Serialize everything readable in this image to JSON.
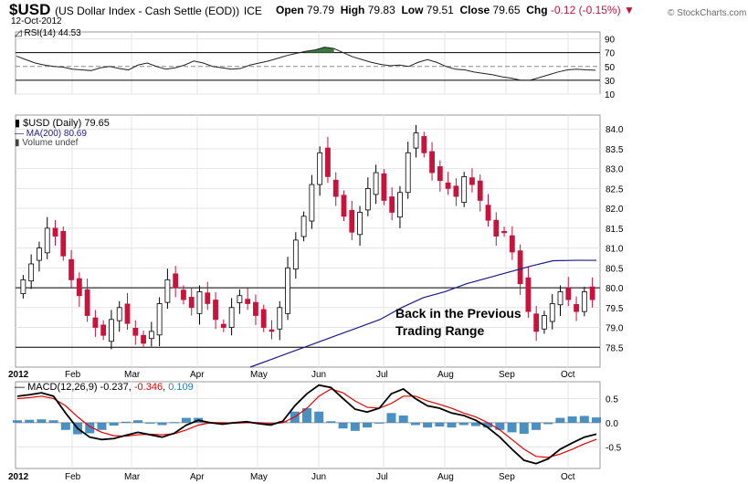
{
  "header": {
    "symbol": "$USD",
    "description": "(US Dollar Index - Cash Settle (EOD))",
    "exchange": "ICE",
    "date": "12-Oct-2012",
    "open_label": "Open",
    "open": "79.79",
    "high_label": "High",
    "high": "79.83",
    "low_label": "Low",
    "low": "79.51",
    "close_label": "Close",
    "close": "79.65",
    "chg_label": "Chg",
    "chg": "-0.12 (-0.15%)",
    "brand": "© StockCharts.com"
  },
  "colors": {
    "bull": "#000000",
    "bear": "#c8143c",
    "ma": "#1a1a8c",
    "rsi_over": "#3c783c",
    "rsi_under": "#9a4b50",
    "macd_line": "#000000",
    "signal_line": "#e60000",
    "histogram": "#2c7cb8",
    "grid": "#e4e4e4"
  },
  "chart_data": [
    {
      "type": "line",
      "panel": "rsi",
      "legend": "RSI(14) 44.53",
      "y_ticks": [
        10,
        30,
        50,
        70,
        90
      ],
      "ylim": [
        10,
        100
      ],
      "reference_lines": [
        30,
        70
      ],
      "series": [
        {
          "name": "RSI(14)",
          "values": [
            65,
            60,
            55,
            52,
            50,
            49,
            46,
            45,
            44,
            48,
            50,
            47,
            45,
            52,
            55,
            50,
            46,
            48,
            52,
            58,
            55,
            50,
            48,
            46,
            47,
            52,
            55,
            58,
            62,
            66,
            69,
            72,
            74,
            78,
            76,
            70,
            64,
            60,
            56,
            53,
            51,
            52,
            50,
            56,
            60,
            56,
            50,
            46,
            45,
            42,
            40,
            38,
            35,
            33,
            30,
            30,
            34,
            38,
            42,
            45,
            46,
            45,
            44.53
          ]
        }
      ]
    },
    {
      "type": "candlestick",
      "panel": "price",
      "legend": [
        "$USD (Daily) 79.65",
        "MA(200) 80.69",
        "Volume undef"
      ],
      "y_ticks": [
        78.5,
        79.0,
        79.5,
        80.0,
        80.5,
        81.0,
        81.5,
        82.0,
        82.5,
        83.0,
        83.5,
        84.0
      ],
      "ylim": [
        78.0,
        84.35
      ],
      "x_tick_labels": [
        "2012",
        "Feb",
        "Mar",
        "Apr",
        "May",
        "Jun",
        "Jul",
        "Aug",
        "Sep",
        "Oct"
      ],
      "horizontal_lines": [
        80.0,
        78.5
      ],
      "annotation": [
        "Back in the Previous",
        "Trading Range"
      ],
      "close": [
        80.2,
        80.6,
        81.0,
        81.5,
        81.3,
        80.8,
        80.2,
        79.8,
        79.3,
        79.0,
        78.8,
        79.2,
        79.5,
        79.1,
        78.8,
        78.6,
        78.9,
        79.6,
        80.2,
        80.0,
        79.7,
        79.5,
        79.9,
        79.6,
        79.2,
        79.0,
        79.5,
        79.8,
        79.6,
        79.3,
        79.0,
        78.9,
        79.5,
        80.5,
        81.2,
        81.8,
        82.6,
        83.4,
        82.8,
        82.3,
        81.8,
        81.4,
        81.9,
        82.5,
        82.9,
        82.2,
        81.9,
        82.4,
        83.4,
        83.9,
        83.4,
        82.9,
        82.7,
        82.5,
        82.3,
        82.8,
        82.6,
        82.2,
        81.7,
        81.3,
        81.4,
        80.9,
        80.1,
        79.4,
        78.9,
        79.3,
        79.6,
        79.9,
        79.7,
        79.4,
        79.9,
        79.7
      ],
      "series": [
        {
          "name": "MA(200)",
          "values": [
            78.0,
            78.2,
            78.4,
            78.6,
            78.8,
            79.0,
            79.2,
            79.5,
            79.75,
            79.9,
            80.1,
            80.25,
            80.4,
            80.55,
            80.68,
            80.69,
            80.69
          ]
        }
      ]
    },
    {
      "type": "line",
      "panel": "macd",
      "legend": {
        "name": "MACD(12,26,9)",
        "macd": "-0.237",
        "signal": "-0.346",
        "histogram": "0.109"
      },
      "y_ticks": [
        -0.5,
        0.0,
        0.5
      ],
      "ylim": [
        -0.95,
        0.85
      ],
      "x_tick_labels": [
        "2012",
        "Feb",
        "Mar",
        "Apr",
        "May",
        "Jun",
        "Jul",
        "Aug",
        "Sep",
        "Oct"
      ],
      "series": [
        {
          "name": "MACD",
          "values": [
            0.55,
            0.58,
            0.62,
            0.55,
            0.2,
            -0.12,
            -0.3,
            -0.35,
            -0.33,
            -0.26,
            -0.2,
            -0.25,
            -0.3,
            -0.22,
            -0.05,
            0.05,
            0.0,
            -0.03,
            0.0,
            0.02,
            -0.02,
            -0.05,
            0.03,
            0.35,
            0.6,
            0.78,
            0.73,
            0.5,
            0.28,
            0.22,
            0.3,
            0.6,
            0.7,
            0.5,
            0.35,
            0.3,
            0.2,
            0.15,
            0.05,
            -0.1,
            -0.3,
            -0.55,
            -0.78,
            -0.85,
            -0.75,
            -0.55,
            -0.42,
            -0.3,
            -0.237
          ]
        },
        {
          "name": "Signal",
          "values": [
            0.5,
            0.52,
            0.55,
            0.5,
            0.35,
            0.12,
            -0.08,
            -0.2,
            -0.27,
            -0.28,
            -0.25,
            -0.24,
            -0.25,
            -0.23,
            -0.15,
            -0.05,
            0.0,
            0.0,
            -0.01,
            0.0,
            0.0,
            -0.02,
            0.0,
            0.12,
            0.3,
            0.55,
            0.7,
            0.62,
            0.45,
            0.32,
            0.3,
            0.4,
            0.55,
            0.55,
            0.45,
            0.38,
            0.3,
            0.2,
            0.12,
            0.0,
            -0.15,
            -0.35,
            -0.55,
            -0.7,
            -0.72,
            -0.65,
            -0.55,
            -0.44,
            -0.346
          ]
        }
      ]
    }
  ]
}
